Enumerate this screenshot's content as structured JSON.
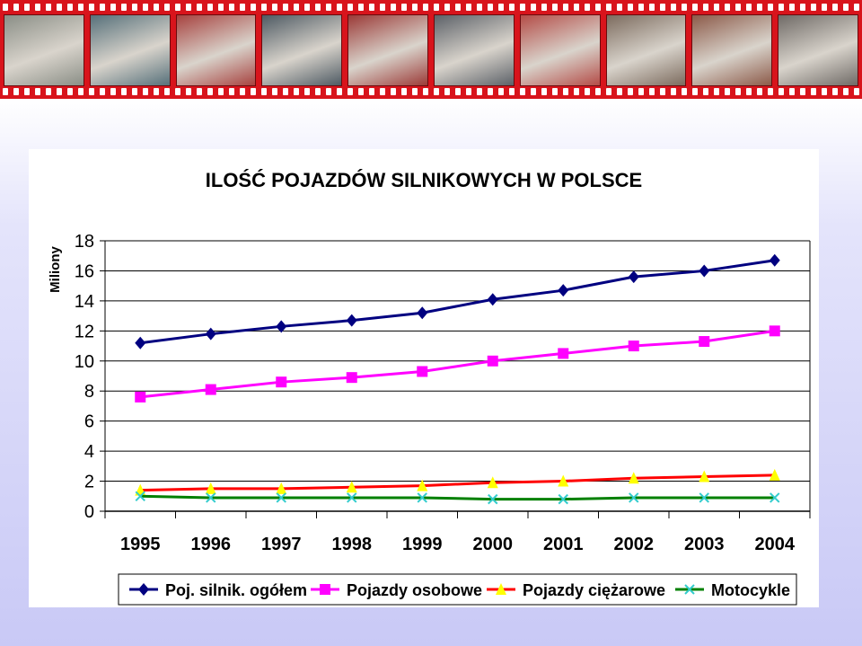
{
  "frames": [
    {
      "icon": "car-wreck-photo",
      "color": "#8a8e86"
    },
    {
      "icon": "overturned-car-photo",
      "color": "#56707a"
    },
    {
      "icon": "train-crash-photo",
      "color": "#a7423f"
    },
    {
      "icon": "crashed-car-photo",
      "color": "#4e5a63"
    },
    {
      "icon": "rescue-photo",
      "color": "#9b3a37"
    },
    {
      "icon": "firefighters-photo",
      "color": "#5c6168"
    },
    {
      "icon": "red-car-wreck-photo",
      "color": "#b44c47"
    },
    {
      "icon": "truck-crash-photo",
      "color": "#7c6b5e"
    },
    {
      "icon": "tractor-crash-photo",
      "color": "#8c5a49"
    },
    {
      "icon": "bus-crash-photo",
      "color": "#6f6a66"
    }
  ],
  "chart_data": {
    "type": "line",
    "title": "ILOŚĆ  POJAZDÓW  SILNIKOWYCH  W  POLSCE",
    "ylabel": "Miliony",
    "xlabel": "",
    "ylim": [
      0,
      18
    ],
    "yticks": [
      "0",
      "2",
      "4",
      "6",
      "8",
      "10",
      "12",
      "14",
      "16",
      "18"
    ],
    "categories": [
      "1995",
      "1996",
      "1997",
      "1998",
      "1999",
      "2000",
      "2001",
      "2002",
      "2003",
      "2004"
    ],
    "grid": "horizontal",
    "legend": "bottom",
    "series": [
      {
        "name": "Poj. silnik. ogółem",
        "color": "#000080",
        "marker": "diamond",
        "values": [
          11.2,
          11.8,
          12.3,
          12.7,
          13.2,
          14.1,
          14.7,
          15.6,
          16.0,
          16.7
        ]
      },
      {
        "name": "Pojazdy osobowe",
        "color": "#ff00ff",
        "marker": "square",
        "values": [
          7.6,
          8.1,
          8.6,
          8.9,
          9.3,
          10.0,
          10.5,
          11.0,
          11.3,
          12.0
        ]
      },
      {
        "name": "Pojazdy ciężarowe",
        "color": "#ff0000",
        "markerColor": "#ffff00",
        "marker": "triangle",
        "values": [
          1.4,
          1.5,
          1.5,
          1.6,
          1.7,
          1.9,
          2.0,
          2.2,
          2.3,
          2.4
        ]
      },
      {
        "name": "Motocykle",
        "color": "#008000",
        "markerColor": "#33cccc",
        "marker": "x",
        "values": [
          1.0,
          0.9,
          0.9,
          0.9,
          0.9,
          0.8,
          0.8,
          0.9,
          0.9,
          0.9
        ]
      }
    ]
  }
}
